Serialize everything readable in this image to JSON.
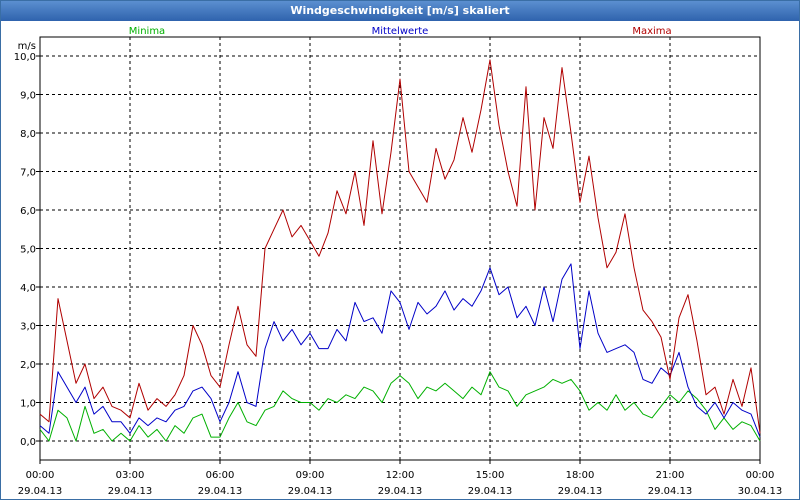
{
  "window": {
    "title": "Windgeschwindigkeit [m/s] skaliert"
  },
  "chart_data": {
    "type": "line",
    "title": "Windgeschwindigkeit [m/s] skaliert",
    "ylabel": "m/s",
    "ylim": [
      0,
      10
    ],
    "yticks": [
      "0,0",
      "1,0",
      "2,0",
      "3,0",
      "4,0",
      "5,0",
      "6,0",
      "7,0",
      "8,0",
      "9,0",
      "10,0"
    ],
    "xticks": [
      {
        "time": "00:00",
        "date": "29.04.13"
      },
      {
        "time": "03:00",
        "date": "29.04.13"
      },
      {
        "time": "06:00",
        "date": "29.04.13"
      },
      {
        "time": "09:00",
        "date": "29.04.13"
      },
      {
        "time": "12:00",
        "date": "29.04.13"
      },
      {
        "time": "15:00",
        "date": "29.04.13"
      },
      {
        "time": "18:00",
        "date": "29.04.13"
      },
      {
        "time": "21:00",
        "date": "29.04.13"
      },
      {
        "time": "00:00",
        "date": "30.04.13"
      }
    ],
    "x_start": "29.04.13 00:00",
    "x_end": "30.04.13 00:00",
    "grid": true,
    "legend_position": "top",
    "series": [
      {
        "name": "Minima",
        "color": "#00b000",
        "points": [
          [
            0,
            0.3
          ],
          [
            0.3,
            0.0
          ],
          [
            0.6,
            0.8
          ],
          [
            0.9,
            0.6
          ],
          [
            1.2,
            0.0
          ],
          [
            1.5,
            0.9
          ],
          [
            1.8,
            0.2
          ],
          [
            2.1,
            0.3
          ],
          [
            2.4,
            0.0
          ],
          [
            2.7,
            0.2
          ],
          [
            3.0,
            0.0
          ],
          [
            3.3,
            0.4
          ],
          [
            3.6,
            0.1
          ],
          [
            3.9,
            0.3
          ],
          [
            4.2,
            0.0
          ],
          [
            4.5,
            0.4
          ],
          [
            4.8,
            0.2
          ],
          [
            5.1,
            0.6
          ],
          [
            5.4,
            0.7
          ],
          [
            5.7,
            0.1
          ],
          [
            6.0,
            0.1
          ],
          [
            6.3,
            0.6
          ],
          [
            6.6,
            1.0
          ],
          [
            6.9,
            0.5
          ],
          [
            7.2,
            0.4
          ],
          [
            7.5,
            0.8
          ],
          [
            7.8,
            0.9
          ],
          [
            8.1,
            1.3
          ],
          [
            8.4,
            1.1
          ],
          [
            8.7,
            1.0
          ],
          [
            9.0,
            1.0
          ],
          [
            9.3,
            0.8
          ],
          [
            9.6,
            1.1
          ],
          [
            9.9,
            1.0
          ],
          [
            10.2,
            1.2
          ],
          [
            10.5,
            1.1
          ],
          [
            10.8,
            1.4
          ],
          [
            11.1,
            1.3
          ],
          [
            11.4,
            1.0
          ],
          [
            11.7,
            1.5
          ],
          [
            12.0,
            1.7
          ],
          [
            12.3,
            1.5
          ],
          [
            12.6,
            1.1
          ],
          [
            12.9,
            1.4
          ],
          [
            13.2,
            1.3
          ],
          [
            13.5,
            1.5
          ],
          [
            13.8,
            1.3
          ],
          [
            14.1,
            1.1
          ],
          [
            14.4,
            1.4
          ],
          [
            14.7,
            1.2
          ],
          [
            15.0,
            1.8
          ],
          [
            15.3,
            1.4
          ],
          [
            15.6,
            1.3
          ],
          [
            15.9,
            0.9
          ],
          [
            16.2,
            1.2
          ],
          [
            16.5,
            1.3
          ],
          [
            16.8,
            1.4
          ],
          [
            17.1,
            1.6
          ],
          [
            17.4,
            1.5
          ],
          [
            17.7,
            1.6
          ],
          [
            18.0,
            1.3
          ],
          [
            18.3,
            0.8
          ],
          [
            18.6,
            1.0
          ],
          [
            18.9,
            0.8
          ],
          [
            19.2,
            1.2
          ],
          [
            19.5,
            0.8
          ],
          [
            19.8,
            1.0
          ],
          [
            20.1,
            0.7
          ],
          [
            20.4,
            0.6
          ],
          [
            20.7,
            0.9
          ],
          [
            21.0,
            1.2
          ],
          [
            21.3,
            1.0
          ],
          [
            21.6,
            1.3
          ],
          [
            21.9,
            1.1
          ],
          [
            22.2,
            0.8
          ],
          [
            22.5,
            0.3
          ],
          [
            22.8,
            0.6
          ],
          [
            23.1,
            0.3
          ],
          [
            23.4,
            0.5
          ],
          [
            23.7,
            0.4
          ],
          [
            24.0,
            0.0
          ]
        ]
      },
      {
        "name": "Mittelwerte",
        "color": "#0000c8",
        "points": [
          [
            0,
            0.4
          ],
          [
            0.3,
            0.2
          ],
          [
            0.6,
            1.8
          ],
          [
            0.9,
            1.4
          ],
          [
            1.2,
            1.0
          ],
          [
            1.5,
            1.4
          ],
          [
            1.8,
            0.7
          ],
          [
            2.1,
            0.9
          ],
          [
            2.4,
            0.5
          ],
          [
            2.7,
            0.5
          ],
          [
            3.0,
            0.2
          ],
          [
            3.3,
            0.6
          ],
          [
            3.6,
            0.4
          ],
          [
            3.9,
            0.6
          ],
          [
            4.2,
            0.5
          ],
          [
            4.5,
            0.8
          ],
          [
            4.8,
            0.9
          ],
          [
            5.1,
            1.3
          ],
          [
            5.4,
            1.4
          ],
          [
            5.7,
            1.1
          ],
          [
            6.0,
            0.5
          ],
          [
            6.3,
            1.0
          ],
          [
            6.6,
            1.8
          ],
          [
            6.9,
            1.0
          ],
          [
            7.2,
            0.9
          ],
          [
            7.5,
            2.4
          ],
          [
            7.8,
            3.1
          ],
          [
            8.1,
            2.6
          ],
          [
            8.4,
            2.9
          ],
          [
            8.7,
            2.5
          ],
          [
            9.0,
            2.8
          ],
          [
            9.3,
            2.4
          ],
          [
            9.6,
            2.4
          ],
          [
            9.9,
            2.9
          ],
          [
            10.2,
            2.6
          ],
          [
            10.5,
            3.6
          ],
          [
            10.8,
            3.1
          ],
          [
            11.1,
            3.2
          ],
          [
            11.4,
            2.8
          ],
          [
            11.7,
            3.9
          ],
          [
            12.0,
            3.6
          ],
          [
            12.3,
            2.9
          ],
          [
            12.6,
            3.6
          ],
          [
            12.9,
            3.3
          ],
          [
            13.2,
            3.5
          ],
          [
            13.5,
            3.9
          ],
          [
            13.8,
            3.4
          ],
          [
            14.1,
            3.7
          ],
          [
            14.4,
            3.5
          ],
          [
            14.7,
            3.9
          ],
          [
            15.0,
            4.5
          ],
          [
            15.3,
            3.8
          ],
          [
            15.6,
            4.0
          ],
          [
            15.9,
            3.2
          ],
          [
            16.2,
            3.5
          ],
          [
            16.5,
            3.0
          ],
          [
            16.8,
            4.0
          ],
          [
            17.1,
            3.1
          ],
          [
            17.4,
            4.2
          ],
          [
            17.7,
            4.6
          ],
          [
            18.0,
            2.4
          ],
          [
            18.3,
            3.9
          ],
          [
            18.6,
            2.8
          ],
          [
            18.9,
            2.3
          ],
          [
            19.2,
            2.4
          ],
          [
            19.5,
            2.5
          ],
          [
            19.8,
            2.3
          ],
          [
            20.1,
            1.6
          ],
          [
            20.4,
            1.5
          ],
          [
            20.7,
            1.9
          ],
          [
            21.0,
            1.7
          ],
          [
            21.3,
            2.3
          ],
          [
            21.6,
            1.4
          ],
          [
            21.9,
            0.9
          ],
          [
            22.2,
            0.7
          ],
          [
            22.5,
            1.0
          ],
          [
            22.8,
            0.6
          ],
          [
            23.1,
            1.0
          ],
          [
            23.4,
            0.8
          ],
          [
            23.7,
            0.7
          ],
          [
            24.0,
            0.1
          ]
        ]
      },
      {
        "name": "Maxima",
        "color": "#b00000",
        "points": [
          [
            0,
            0.7
          ],
          [
            0.3,
            0.5
          ],
          [
            0.6,
            3.7
          ],
          [
            0.9,
            2.6
          ],
          [
            1.2,
            1.5
          ],
          [
            1.5,
            2.0
          ],
          [
            1.8,
            1.1
          ],
          [
            2.1,
            1.4
          ],
          [
            2.4,
            0.9
          ],
          [
            2.7,
            0.8
          ],
          [
            3.0,
            0.6
          ],
          [
            3.3,
            1.5
          ],
          [
            3.6,
            0.8
          ],
          [
            3.9,
            1.1
          ],
          [
            4.2,
            0.9
          ],
          [
            4.5,
            1.2
          ],
          [
            4.8,
            1.7
          ],
          [
            5.1,
            3.0
          ],
          [
            5.4,
            2.5
          ],
          [
            5.7,
            1.7
          ],
          [
            6.0,
            1.4
          ],
          [
            6.3,
            2.5
          ],
          [
            6.6,
            3.5
          ],
          [
            6.9,
            2.5
          ],
          [
            7.2,
            2.2
          ],
          [
            7.5,
            5.0
          ],
          [
            7.8,
            5.5
          ],
          [
            8.1,
            6.0
          ],
          [
            8.4,
            5.3
          ],
          [
            8.7,
            5.6
          ],
          [
            9.0,
            5.2
          ],
          [
            9.3,
            4.8
          ],
          [
            9.6,
            5.4
          ],
          [
            9.9,
            6.5
          ],
          [
            10.2,
            5.9
          ],
          [
            10.5,
            7.0
          ],
          [
            10.8,
            5.6
          ],
          [
            11.1,
            7.8
          ],
          [
            11.4,
            5.9
          ],
          [
            11.7,
            7.5
          ],
          [
            12.0,
            9.4
          ],
          [
            12.3,
            7.0
          ],
          [
            12.6,
            6.6
          ],
          [
            12.9,
            6.2
          ],
          [
            13.2,
            7.6
          ],
          [
            13.5,
            6.8
          ],
          [
            13.8,
            7.3
          ],
          [
            14.1,
            8.4
          ],
          [
            14.4,
            7.5
          ],
          [
            14.7,
            8.6
          ],
          [
            15.0,
            9.9
          ],
          [
            15.3,
            8.2
          ],
          [
            15.6,
            7.0
          ],
          [
            15.9,
            6.1
          ],
          [
            16.2,
            9.2
          ],
          [
            16.5,
            6.0
          ],
          [
            16.8,
            8.4
          ],
          [
            17.1,
            7.6
          ],
          [
            17.4,
            9.7
          ],
          [
            17.7,
            8.0
          ],
          [
            18.0,
            6.2
          ],
          [
            18.3,
            7.4
          ],
          [
            18.6,
            5.8
          ],
          [
            18.9,
            4.5
          ],
          [
            19.2,
            4.9
          ],
          [
            19.5,
            5.9
          ],
          [
            19.8,
            4.5
          ],
          [
            20.1,
            3.4
          ],
          [
            20.4,
            3.1
          ],
          [
            20.7,
            2.7
          ],
          [
            21.0,
            1.6
          ],
          [
            21.3,
            3.2
          ],
          [
            21.6,
            3.8
          ],
          [
            21.9,
            2.6
          ],
          [
            22.2,
            1.2
          ],
          [
            22.5,
            1.4
          ],
          [
            22.8,
            0.7
          ],
          [
            23.1,
            1.6
          ],
          [
            23.4,
            0.9
          ],
          [
            23.7,
            1.9
          ],
          [
            24.0,
            0.2
          ]
        ]
      }
    ]
  }
}
